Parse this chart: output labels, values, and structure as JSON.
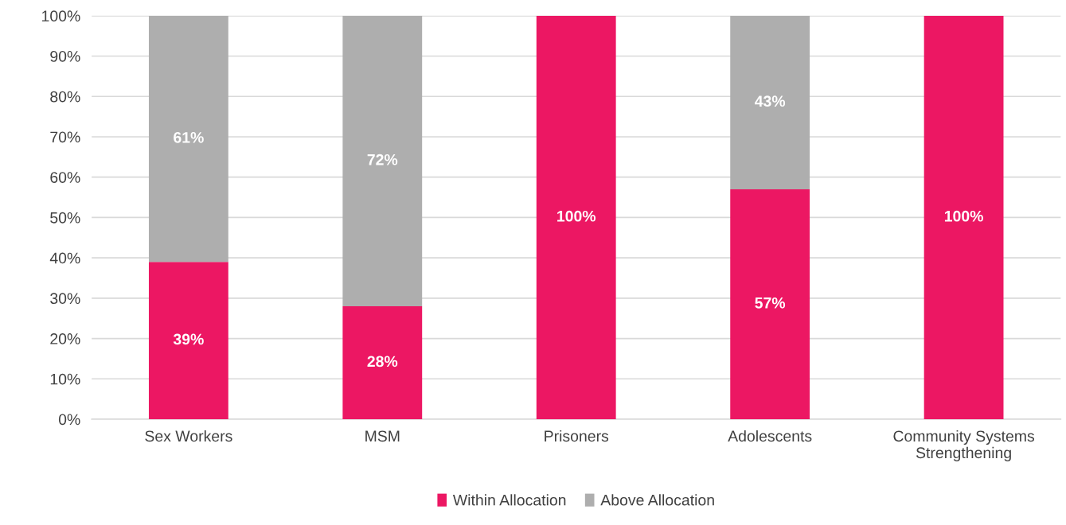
{
  "chart_data": {
    "type": "bar",
    "stacked": true,
    "categories": [
      "Sex Workers",
      "MSM",
      "Prisoners",
      "Adolescents",
      "Community Systems\nStrengthening"
    ],
    "series": [
      {
        "name": "Within Allocation",
        "color": "#ec1763",
        "values": [
          39,
          28,
          100,
          57,
          100
        ],
        "value_labels": [
          "39%",
          "28%",
          "100%",
          "57%",
          "100%"
        ]
      },
      {
        "name": "Above Allocation",
        "color": "#aeaeae",
        "values": [
          61,
          72,
          0,
          43,
          0
        ],
        "value_labels": [
          "61%",
          "72%",
          null,
          "43%",
          null
        ]
      }
    ],
    "ylim": [
      0,
      100
    ],
    "yticks": [
      {
        "value": 0,
        "label": "0%"
      },
      {
        "value": 10,
        "label": "10%"
      },
      {
        "value": 20,
        "label": "20%"
      },
      {
        "value": 30,
        "label": "30%"
      },
      {
        "value": 40,
        "label": "40%"
      },
      {
        "value": 50,
        "label": "50%"
      },
      {
        "value": 60,
        "label": "60%"
      },
      {
        "value": 70,
        "label": "70%"
      },
      {
        "value": 80,
        "label": "80%"
      },
      {
        "value": 90,
        "label": "90%"
      },
      {
        "value": 100,
        "label": "100%"
      }
    ],
    "grid": "y",
    "legend": "bottom"
  }
}
